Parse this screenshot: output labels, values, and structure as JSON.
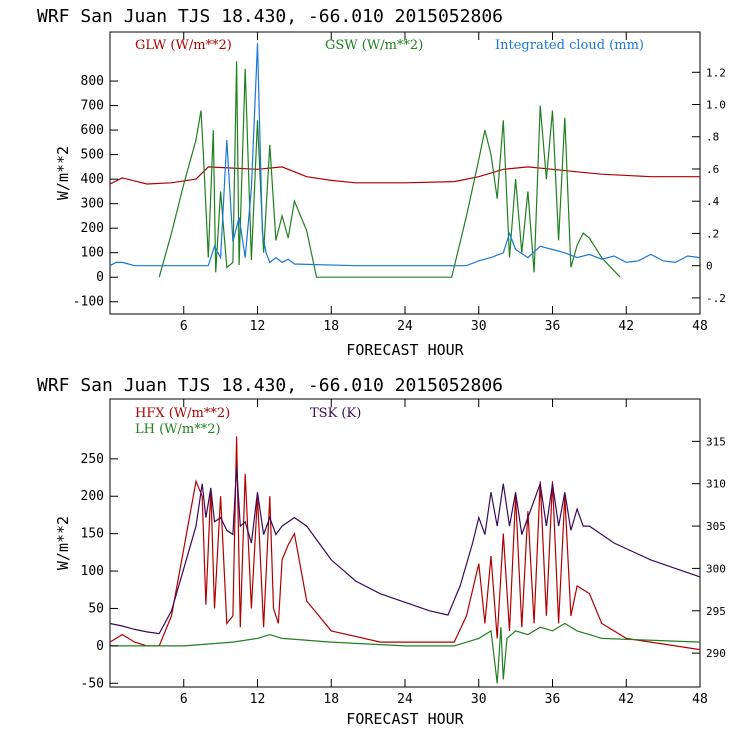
{
  "chart_data": [
    {
      "type": "line",
      "title": "WRF  San Juan TJS  18.430, -66.010  2015052806",
      "xlabel": "FORECAST HOUR",
      "ylabel": "W/m**2",
      "xlim": [
        0,
        48
      ],
      "ylim": [
        -150,
        1000
      ],
      "y2lim": [
        -0.3,
        1.45
      ],
      "x_ticks": [
        "6",
        "12",
        "18",
        "24",
        "30",
        "36",
        "42",
        "48"
      ],
      "y_ticks": [
        "-100",
        "0",
        "100",
        "200",
        "300",
        "400",
        "500",
        "600",
        "700",
        "800"
      ],
      "y2_ticks": [
        "-.2",
        "0",
        ".2",
        ".4",
        ".6",
        ".8",
        "1.0",
        "1.2"
      ],
      "grid": false,
      "series": [
        {
          "name": "GLW (W/m**2)",
          "color": "#b00000",
          "axis": "left",
          "x": [
            0,
            1,
            3,
            5,
            7,
            8,
            10,
            12,
            14,
            16,
            18,
            20,
            24,
            28,
            30,
            32,
            34,
            36,
            38,
            40,
            44,
            48
          ],
          "y": [
            380,
            405,
            380,
            385,
            400,
            450,
            445,
            440,
            450,
            410,
            395,
            385,
            385,
            390,
            410,
            440,
            450,
            440,
            430,
            420,
            410,
            410
          ]
        },
        {
          "name": "GSW (W/m**2)",
          "color": "#208020",
          "axis": "left",
          "x": [
            4,
            5,
            6,
            7,
            7.4,
            7.6,
            8,
            8.4,
            8.6,
            9,
            9.5,
            10,
            10.3,
            10.5,
            11,
            11.5,
            12,
            12.5,
            13,
            13.5,
            14,
            14.5,
            15,
            16,
            16.8,
            27.8,
            29,
            30,
            30.5,
            31,
            31.5,
            32,
            32.5,
            33,
            33.5,
            34,
            34.5,
            35,
            35.5,
            36,
            36.5,
            37,
            37.5,
            38,
            38.5,
            39,
            40,
            41.5
          ],
          "y": [
            0,
            180,
            380,
            560,
            680,
            500,
            80,
            600,
            20,
            350,
            40,
            60,
            880,
            50,
            850,
            70,
            640,
            100,
            540,
            150,
            250,
            160,
            310,
            190,
            0,
            0,
            250,
            480,
            600,
            500,
            320,
            640,
            80,
            400,
            100,
            350,
            20,
            700,
            400,
            680,
            150,
            650,
            40,
            130,
            180,
            160,
            80,
            0
          ]
        },
        {
          "name": "Integrated cloud (mm)",
          "color": "#1a78d6",
          "axis": "right",
          "x": [
            0,
            0.5,
            1,
            1.5,
            2,
            8,
            8.5,
            9,
            9.5,
            10,
            10.5,
            11,
            11.5,
            12,
            12.4,
            12.7,
            13,
            13.5,
            14,
            14.5,
            15,
            20,
            29,
            30,
            31,
            32,
            32.5,
            33,
            34,
            35,
            36,
            37,
            38,
            39,
            40,
            41,
            42,
            43,
            44,
            45,
            46,
            47,
            48
          ],
          "y": [
            0,
            0.02,
            0.02,
            0.01,
            0,
            0,
            0.12,
            0.05,
            0.78,
            0.15,
            0.3,
            0.05,
            0.48,
            1.38,
            0.2,
            0.08,
            0.02,
            0.05,
            0.02,
            0.04,
            0.01,
            0,
            0,
            0.03,
            0.05,
            0.08,
            0.2,
            0.1,
            0.05,
            0.12,
            0.1,
            0.08,
            0.05,
            0.07,
            0.04,
            0.06,
            0.02,
            0.03,
            0.07,
            0.03,
            0.02,
            0.06,
            0.05
          ]
        }
      ]
    },
    {
      "type": "line",
      "title": "WRF  San Juan TJS  18.430, -66.010  2015052806",
      "xlabel": "FORECAST HOUR",
      "ylabel": "W/m**2",
      "xlim": [
        0,
        48
      ],
      "ylim": [
        -55,
        330
      ],
      "y2lim": [
        286,
        320
      ],
      "x_ticks": [
        "6",
        "12",
        "18",
        "24",
        "30",
        "36",
        "42",
        "48"
      ],
      "y_ticks": [
        "-50",
        "0",
        "50",
        "100",
        "150",
        "200",
        "250"
      ],
      "y2_ticks": [
        "290",
        "295",
        "300",
        "305",
        "310",
        "315"
      ],
      "grid": false,
      "series": [
        {
          "name": "HFX (W/m**2)",
          "color": "#b00000",
          "axis": "left",
          "x": [
            0,
            1,
            2,
            3,
            4,
            5,
            6,
            7,
            7.5,
            7.8,
            8.2,
            8.5,
            9,
            9.5,
            10,
            10.3,
            10.6,
            11,
            11.5,
            12,
            12.5,
            13,
            13.3,
            13.7,
            14,
            14.5,
            15,
            16,
            18,
            22,
            28,
            29,
            30,
            30.5,
            31,
            31.5,
            32,
            32.5,
            33,
            33.5,
            34,
            34.5,
            35,
            35.5,
            36,
            36.5,
            37,
            37.5,
            38,
            39,
            40,
            42,
            48
          ],
          "y": [
            5,
            15,
            5,
            0,
            0,
            40,
            130,
            220,
            200,
            55,
            210,
            50,
            200,
            30,
            40,
            280,
            25,
            230,
            50,
            200,
            25,
            200,
            50,
            30,
            115,
            135,
            150,
            60,
            20,
            5,
            5,
            40,
            110,
            30,
            120,
            10,
            150,
            20,
            200,
            25,
            180,
            30,
            220,
            40,
            220,
            30,
            200,
            40,
            80,
            70,
            30,
            10,
            -5
          ]
        },
        {
          "name": "LH (W/m**2)",
          "color": "#208020",
          "axis": "left",
          "x": [
            0,
            6,
            10,
            12,
            13,
            14,
            18,
            24,
            28,
            30,
            31,
            31.5,
            31.8,
            32,
            32.3,
            33,
            34,
            35,
            36,
            37,
            38,
            39,
            40,
            48
          ],
          "y": [
            0,
            0,
            5,
            10,
            15,
            10,
            5,
            0,
            0,
            10,
            20,
            -50,
            25,
            -45,
            10,
            20,
            15,
            25,
            20,
            30,
            20,
            15,
            10,
            5
          ]
        },
        {
          "name": "TSK (K)",
          "color": "#3a0a5a",
          "axis": "right",
          "x": [
            0,
            1,
            2,
            3,
            4,
            5,
            6,
            7,
            7.5,
            7.8,
            8.2,
            8.5,
            9,
            9.5,
            10,
            10.3,
            10.6,
            11,
            11.5,
            12,
            12.5,
            13,
            13.5,
            14,
            15,
            16,
            18,
            20,
            22,
            24,
            26,
            27.5,
            28.5,
            29.5,
            30,
            30.5,
            31,
            31.5,
            32,
            32.5,
            33,
            33.5,
            34,
            35,
            35.5,
            36,
            36.5,
            37,
            37.5,
            38,
            38.5,
            39,
            41,
            44,
            48
          ],
          "y": [
            293.5,
            293.2,
            292.8,
            292.5,
            292.3,
            295,
            300,
            305,
            310,
            306,
            309.5,
            305.5,
            306,
            304.5,
            304,
            312,
            305,
            305.5,
            303,
            309,
            304,
            306,
            304,
            305,
            306,
            305,
            301,
            298.5,
            297,
            296,
            295,
            294.5,
            298,
            303,
            306,
            304,
            309,
            305,
            310,
            305,
            309,
            304,
            306,
            310,
            305,
            310,
            305,
            309,
            304.5,
            307,
            305,
            305,
            303,
            301,
            299
          ]
        }
      ]
    }
  ]
}
